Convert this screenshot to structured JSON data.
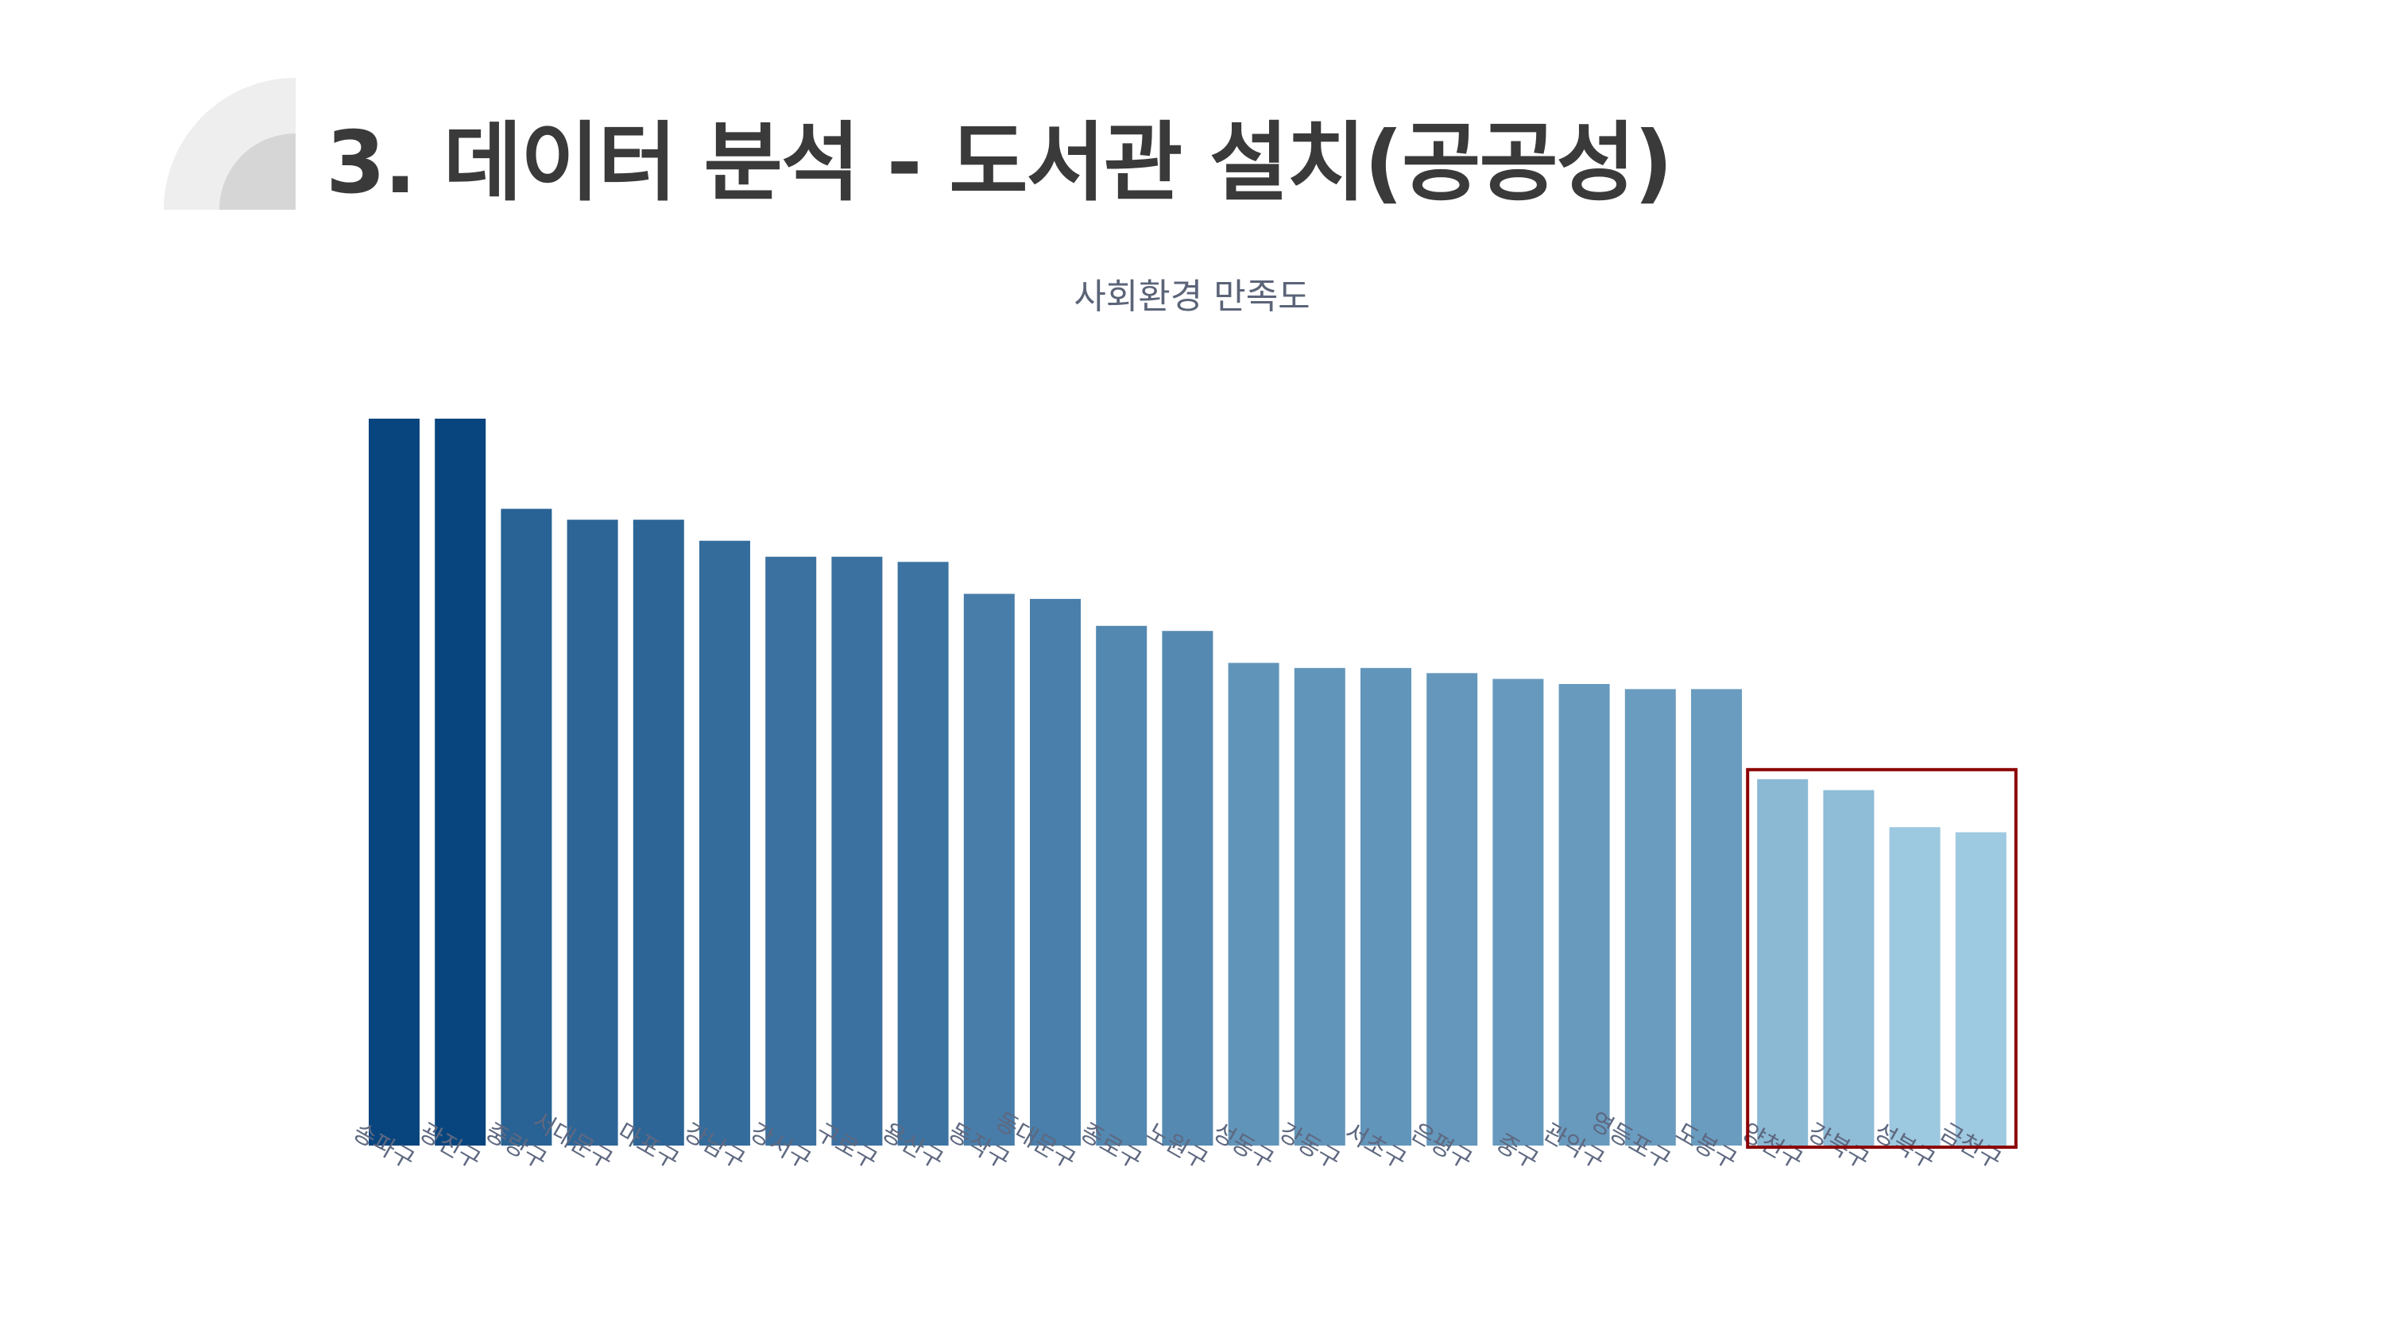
{
  "slide": {
    "title": "3. 데이터 분석 - 도서관 설치(공공성)"
  },
  "colors": {
    "background": "#ffffff",
    "title_text": "#3a3a3a",
    "decoration_light": "#eeeeee",
    "decoration_dark": "#d6d6d6",
    "bar_darkest": "#08457f",
    "bar_lightest": "#9ecae1",
    "highlight_box": "#8b0000"
  },
  "chart_data": {
    "type": "bar",
    "title": "사회환경 만족도",
    "xlabel": "",
    "ylabel": "",
    "categories": [
      "송파구",
      "광진구",
      "중랑구",
      "서대문구",
      "마포구",
      "강남구",
      "강서구",
      "구로구",
      "용산구",
      "동작구",
      "동대문구",
      "종로구",
      "노원구",
      "성동구",
      "강동구",
      "서초구",
      "은평구",
      "중구",
      "관악구",
      "영등포구",
      "도봉구",
      "양천구",
      "강북구",
      "성북구",
      "금천구"
    ],
    "values": [
      100,
      100,
      87.6,
      86.1,
      86.1,
      83.2,
      81.0,
      81.0,
      80.3,
      75.9,
      75.2,
      71.5,
      70.8,
      66.4,
      65.7,
      65.7,
      65.0,
      64.2,
      63.5,
      62.8,
      62.8,
      50.4,
      48.9,
      43.8,
      43.1
    ],
    "ylim": [
      0,
      100
    ],
    "grid": false,
    "legend": "none",
    "color_scale": "Blues (darker = higher)",
    "highlighted_categories": [
      "양천구",
      "강북구",
      "성북구",
      "금천구"
    ]
  }
}
